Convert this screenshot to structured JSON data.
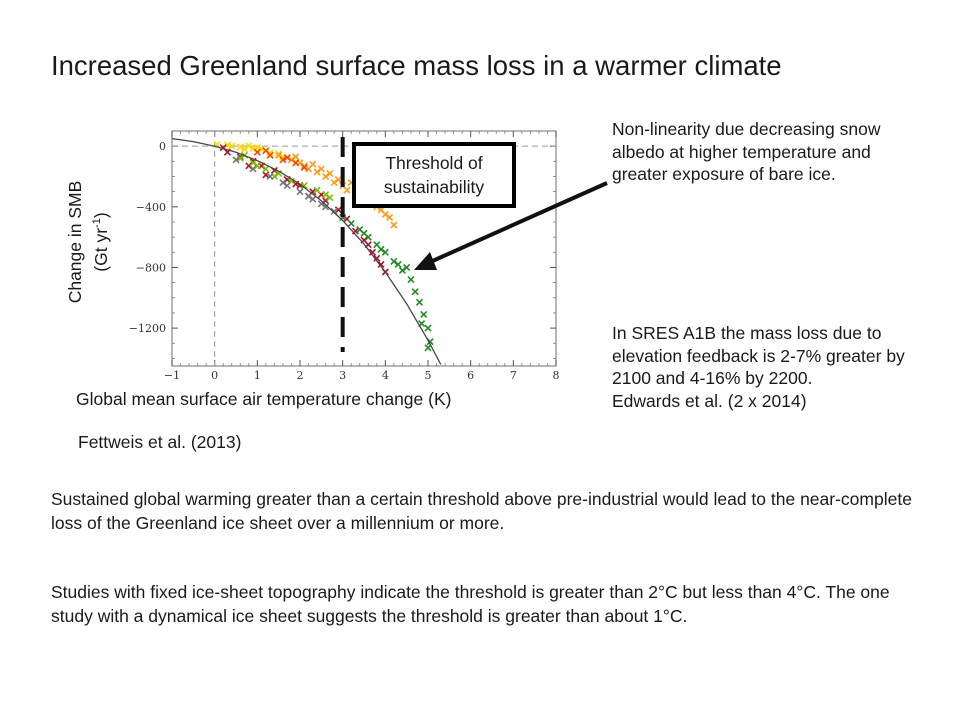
{
  "slide": {
    "title": "Increased Greenland surface mass loss in a warmer climate",
    "ylabel_line1": "Change in SMB",
    "ylabel_line2_pre": "(Gt yr",
    "ylabel_sup": "-1",
    "ylabel_line2_post": ")",
    "xlabel": "Global mean surface air temperature change (K)",
    "citation_1": "Fettweis et al. (2013)",
    "threshold_box": "Threshold of sustainability",
    "nonlinearity_note": "Non-linearity due decreasing snow albedo at higher temperature and greater exposure of bare ice.",
    "a1b_note": "In SRES A1B the mass loss due to elevation feedback is 2-7% greater by 2100 and 4-16% by 2200.",
    "citation_2": "Edwards et al. (2 x 2014)",
    "paragraph_1": "Sustained global warming greater than a certain threshold above pre-industrial would lead to the near-complete loss of the Greenland ice sheet over a millennium or more.",
    "paragraph_2": "Studies with fixed ice-sheet topography indicate the threshold is greater than 2°C but less than 4°C. The one study with a dynamical ice sheet suggests the threshold is greater than about 1°C."
  },
  "chart_data": {
    "type": "scatter",
    "xlim": [
      -1,
      8
    ],
    "ylim": [
      -1450,
      100
    ],
    "x_ticks": [
      "−1",
      "0",
      "1",
      "2",
      "3",
      "4",
      "5",
      "6",
      "7",
      "8"
    ],
    "y_ticks": [
      "0",
      "−400",
      "−800",
      "−1200"
    ],
    "threshold_x": 3,
    "colors": {
      "fit": "#444444",
      "zero_lines": "#999999",
      "threshold": "#111111",
      "arrow": "#111111",
      "frame": "#888888"
    },
    "fit_curve": {
      "x": [
        -1,
        -0.5,
        0,
        0.5,
        1,
        1.5,
        2,
        2.5,
        3,
        3.5,
        4,
        4.5,
        5,
        5.3
      ],
      "y": [
        50,
        30,
        0,
        -40,
        -95,
        -165,
        -250,
        -360,
        -490,
        -645,
        -830,
        -1040,
        -1280,
        -1440
      ]
    },
    "series": [
      {
        "color": "#ffd700",
        "points": [
          [
            0.05,
            10
          ],
          [
            0.3,
            8
          ],
          [
            0.6,
            -5
          ],
          [
            0.9,
            -15
          ],
          [
            1.1,
            -20
          ],
          [
            1.3,
            -45
          ],
          [
            1.5,
            -50
          ],
          [
            0.8,
            2
          ],
          [
            1.0,
            -10
          ],
          [
            0.4,
            0
          ],
          [
            1.6,
            -70
          ],
          [
            0.7,
            -20
          ]
        ]
      },
      {
        "color": "#ff9a1a",
        "points": [
          [
            1.5,
            -60
          ],
          [
            1.8,
            -90
          ],
          [
            2.0,
            -110
          ],
          [
            2.2,
            -150
          ],
          [
            2.4,
            -170
          ],
          [
            2.6,
            -200
          ],
          [
            2.8,
            -240
          ],
          [
            3.0,
            -260
          ],
          [
            3.1,
            -290
          ],
          [
            3.3,
            -310
          ],
          [
            3.5,
            -340
          ],
          [
            3.7,
            -380
          ],
          [
            3.9,
            -420
          ],
          [
            4.1,
            -470
          ],
          [
            4.2,
            -520
          ],
          [
            2.3,
            -120
          ],
          [
            2.7,
            -180
          ],
          [
            3.2,
            -240
          ],
          [
            3.6,
            -300
          ],
          [
            4.0,
            -450
          ],
          [
            1.9,
            -70
          ],
          [
            2.5,
            -150
          ],
          [
            3.4,
            -350
          ],
          [
            3.8,
            -400
          ],
          [
            2.1,
            -130
          ],
          [
            2.9,
            -220
          ]
        ]
      },
      {
        "color": "#ff4500",
        "points": [
          [
            1.0,
            -40
          ],
          [
            1.3,
            -60
          ],
          [
            1.6,
            -90
          ],
          [
            1.9,
            -110
          ],
          [
            2.1,
            -140
          ],
          [
            1.2,
            -30
          ],
          [
            1.7,
            -75
          ]
        ]
      },
      {
        "color": "#b01030",
        "points": [
          [
            0.3,
            -40
          ],
          [
            0.6,
            -70
          ],
          [
            0.9,
            -100
          ],
          [
            1.1,
            -130
          ],
          [
            1.4,
            -160
          ],
          [
            1.7,
            -220
          ],
          [
            2.0,
            -260
          ],
          [
            2.3,
            -300
          ],
          [
            2.6,
            -360
          ],
          [
            2.9,
            -420
          ],
          [
            3.1,
            -480
          ],
          [
            3.3,
            -560
          ],
          [
            3.5,
            -620
          ],
          [
            3.7,
            -700
          ],
          [
            3.9,
            -780
          ],
          [
            4.0,
            -830
          ],
          [
            0.2,
            -10
          ],
          [
            1.2,
            -190
          ],
          [
            1.9,
            -250
          ],
          [
            2.5,
            -320
          ],
          [
            3.6,
            -650
          ],
          [
            3.8,
            -740
          ],
          [
            0.8,
            -130
          ],
          [
            2.2,
            -330
          ]
        ]
      },
      {
        "color": "#228b22",
        "points": [
          [
            3.0,
            -470
          ],
          [
            3.2,
            -510
          ],
          [
            3.4,
            -550
          ],
          [
            3.6,
            -600
          ],
          [
            3.8,
            -650
          ],
          [
            4.0,
            -700
          ],
          [
            4.2,
            -760
          ],
          [
            4.4,
            -820
          ],
          [
            4.6,
            -880
          ],
          [
            4.7,
            -960
          ],
          [
            4.8,
            -1030
          ],
          [
            4.9,
            -1110
          ],
          [
            5.0,
            -1200
          ],
          [
            5.05,
            -1290
          ],
          [
            5.0,
            -1330
          ],
          [
            4.5,
            -800
          ],
          [
            4.3,
            -780
          ],
          [
            3.9,
            -680
          ],
          [
            4.85,
            -1170
          ],
          [
            3.5,
            -575
          ]
        ]
      },
      {
        "color": "#7cc000",
        "points": [
          [
            0.6,
            -80
          ],
          [
            0.9,
            -110
          ],
          [
            1.2,
            -150
          ],
          [
            1.5,
            -180
          ],
          [
            1.8,
            -230
          ],
          [
            2.1,
            -260
          ],
          [
            2.4,
            -290
          ],
          [
            2.7,
            -340
          ],
          [
            1.0,
            -130
          ],
          [
            0.7,
            -60
          ],
          [
            1.4,
            -200
          ],
          [
            2.6,
            -320
          ]
        ]
      },
      {
        "color": "#777777",
        "points": [
          [
            0.5,
            -90
          ],
          [
            0.9,
            -150
          ],
          [
            1.3,
            -200
          ],
          [
            1.7,
            -260
          ],
          [
            2.0,
            -300
          ],
          [
            2.2,
            -330
          ],
          [
            2.5,
            -380
          ],
          [
            2.8,
            -430
          ],
          [
            1.6,
            -240
          ],
          [
            2.3,
            -350
          ],
          [
            2.6,
            -400
          ]
        ]
      }
    ]
  }
}
